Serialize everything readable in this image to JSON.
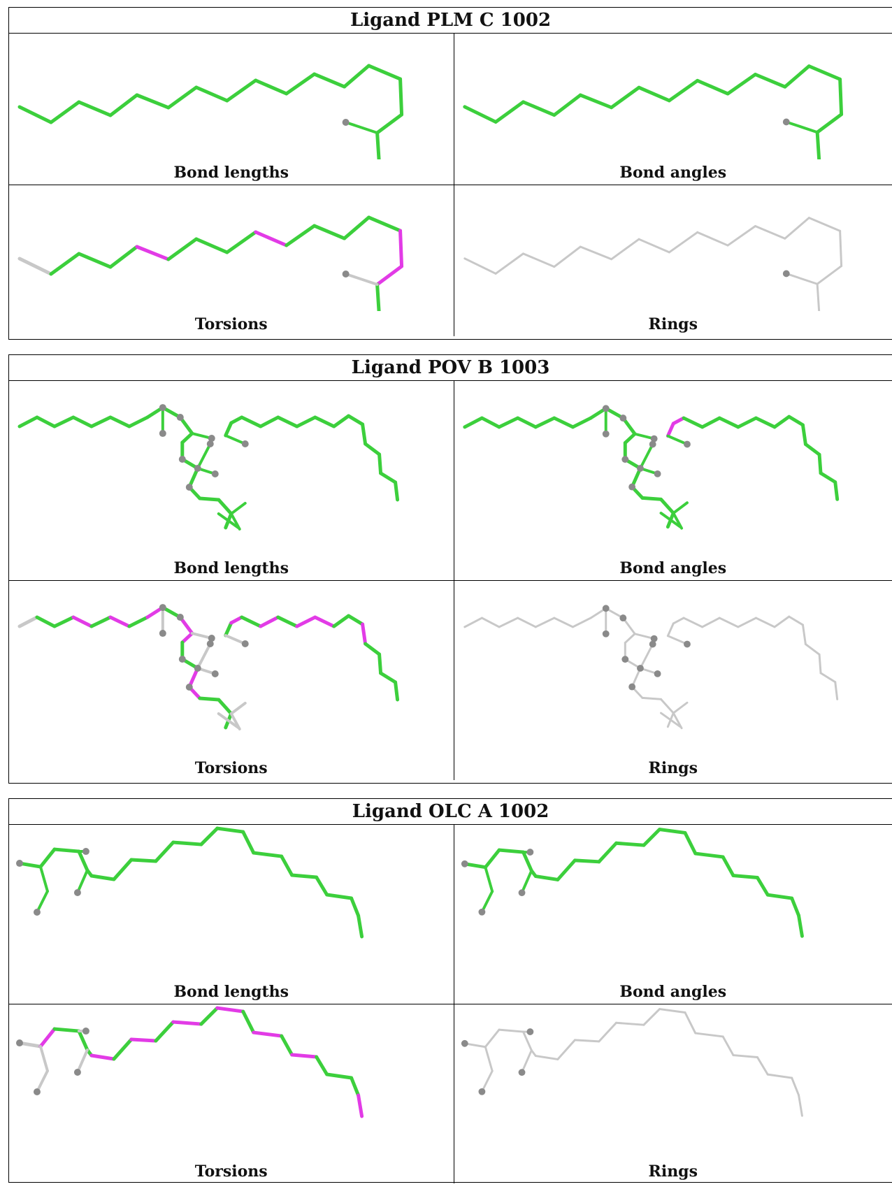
{
  "colors": {
    "ok": "#3ccf3c",
    "outlier": "#e23be6",
    "none": "#c8c8c8",
    "atom": "#8a8a8a"
  },
  "ligands": [
    {
      "title": "Ligand PLM C 1002",
      "panels": [
        "Bond lengths",
        "Bond angles",
        "Torsions",
        "Rings"
      ]
    },
    {
      "title": "Ligand POV B 1003",
      "panels": [
        "Bond lengths",
        "Bond angles",
        "Torsions",
        "Rings"
      ]
    },
    {
      "title": "Ligand OLC A 1002",
      "panels": [
        "Bond lengths",
        "Bond angles",
        "Torsions",
        "Rings"
      ]
    }
  ]
}
